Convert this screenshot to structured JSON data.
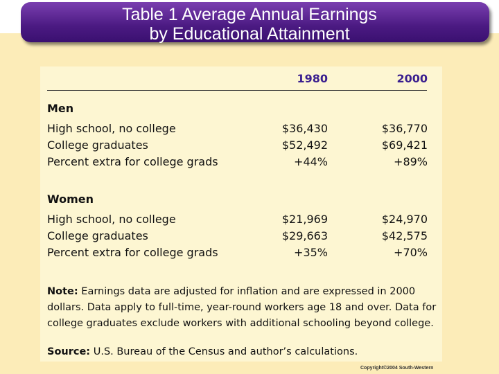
{
  "header": {
    "title_lines": [
      "Table 1 Average Annual Earnings",
      "by Educational Attainment"
    ]
  },
  "table": {
    "columns": [
      "1980",
      "2000"
    ],
    "sections": [
      {
        "name": "Men",
        "rows": [
          [
            "High school, no college",
            "$36,430",
            "$36,770"
          ],
          [
            "College graduates",
            "$52,492",
            "$69,421"
          ],
          [
            "Percent extra for college grads",
            "+44%",
            "+89%"
          ]
        ]
      },
      {
        "name": "Women",
        "rows": [
          [
            "High school, no college",
            "$21,969",
            "$24,970"
          ],
          [
            "College graduates",
            "$29,663",
            "$42,575"
          ],
          [
            "Percent extra for college grads",
            "+35%",
            "+70%"
          ]
        ]
      }
    ]
  },
  "note": {
    "label": "Note:",
    "text": "Earnings data are adjusted for inflation and are expressed in 2000 dollars. Data apply to full-time, year-round workers age 18 and over. Data for college graduates exclude workers with additional schooling beyond college."
  },
  "source": {
    "label": "Source:",
    "text": "U.S. Bureau of the Census and author’s calculations."
  },
  "copyright": "Copyright©2004  South-Western"
}
